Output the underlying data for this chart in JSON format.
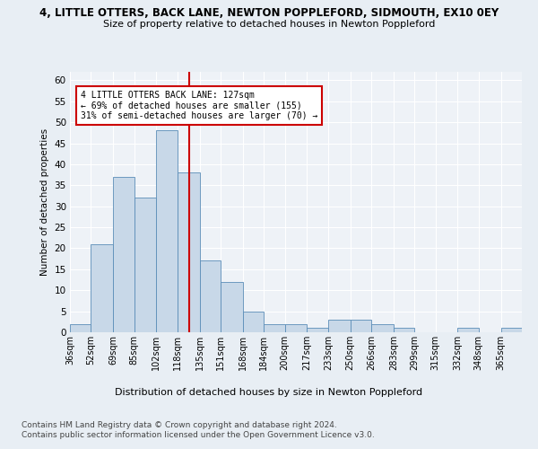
{
  "title": "4, LITTLE OTTERS, BACK LANE, NEWTON POPPLEFORD, SIDMOUTH, EX10 0EY",
  "subtitle": "Size of property relative to detached houses in Newton Poppleford",
  "xlabel": "Distribution of detached houses by size in Newton Poppleford",
  "ylabel": "Number of detached properties",
  "bin_labels": [
    "36sqm",
    "52sqm",
    "69sqm",
    "85sqm",
    "102sqm",
    "118sqm",
    "135sqm",
    "151sqm",
    "168sqm",
    "184sqm",
    "200sqm",
    "217sqm",
    "233sqm",
    "250sqm",
    "266sqm",
    "283sqm",
    "299sqm",
    "315sqm",
    "332sqm",
    "348sqm",
    "365sqm"
  ],
  "bin_edges": [
    36,
    52,
    69,
    85,
    102,
    118,
    135,
    151,
    168,
    184,
    200,
    217,
    233,
    250,
    266,
    283,
    299,
    315,
    332,
    348,
    365,
    381
  ],
  "bar_heights": [
    2,
    21,
    37,
    32,
    48,
    38,
    17,
    12,
    5,
    2,
    2,
    1,
    3,
    3,
    2,
    1,
    0,
    0,
    1,
    0,
    1
  ],
  "bar_color": "#c8d8e8",
  "bar_edge_color": "#5b8db8",
  "property_size": 127,
  "annotation_text": "4 LITTLE OTTERS BACK LANE: 127sqm\n← 69% of detached houses are smaller (155)\n31% of semi-detached houses are larger (70) →",
  "vline_color": "#cc0000",
  "annotation_box_edge": "#cc0000",
  "ylim": [
    0,
    62
  ],
  "yticks": [
    0,
    5,
    10,
    15,
    20,
    25,
    30,
    35,
    40,
    45,
    50,
    55,
    60
  ],
  "footnote1": "Contains HM Land Registry data © Crown copyright and database right 2024.",
  "footnote2": "Contains public sector information licensed under the Open Government Licence v3.0.",
  "background_color": "#e8eef4",
  "plot_bg_color": "#eef2f7"
}
